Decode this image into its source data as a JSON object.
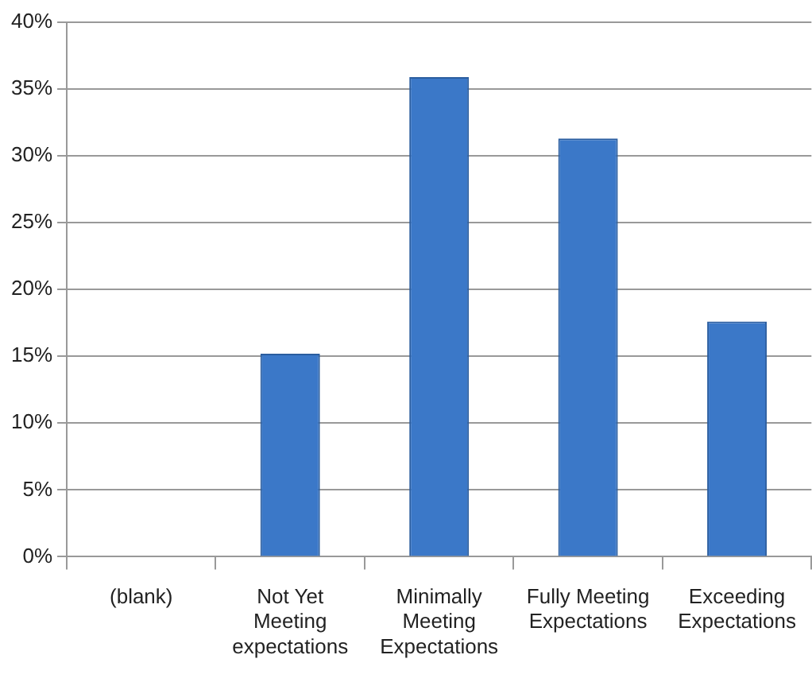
{
  "chart_data": {
    "type": "bar",
    "categories": [
      "(blank)",
      "Not Yet Meeting expectations",
      "Minimally Meeting Expectations",
      "Fully Meeting Expectations",
      "Exceeding Expectations"
    ],
    "values": [
      0,
      15.2,
      35.9,
      31.3,
      17.6
    ],
    "color": "#3b78c8",
    "ylim": [
      0,
      40
    ],
    "yticks": [
      {
        "value": 0,
        "label": "0%"
      },
      {
        "value": 5,
        "label": "5%"
      },
      {
        "value": 10,
        "label": "10%"
      },
      {
        "value": 15,
        "label": "15%"
      },
      {
        "value": 20,
        "label": "20%"
      },
      {
        "value": 25,
        "label": "25%"
      },
      {
        "value": 30,
        "label": "30%"
      },
      {
        "value": 35,
        "label": "35%"
      },
      {
        "value": 40,
        "label": "40%"
      }
    ],
    "grid": "y",
    "legend": false
  }
}
